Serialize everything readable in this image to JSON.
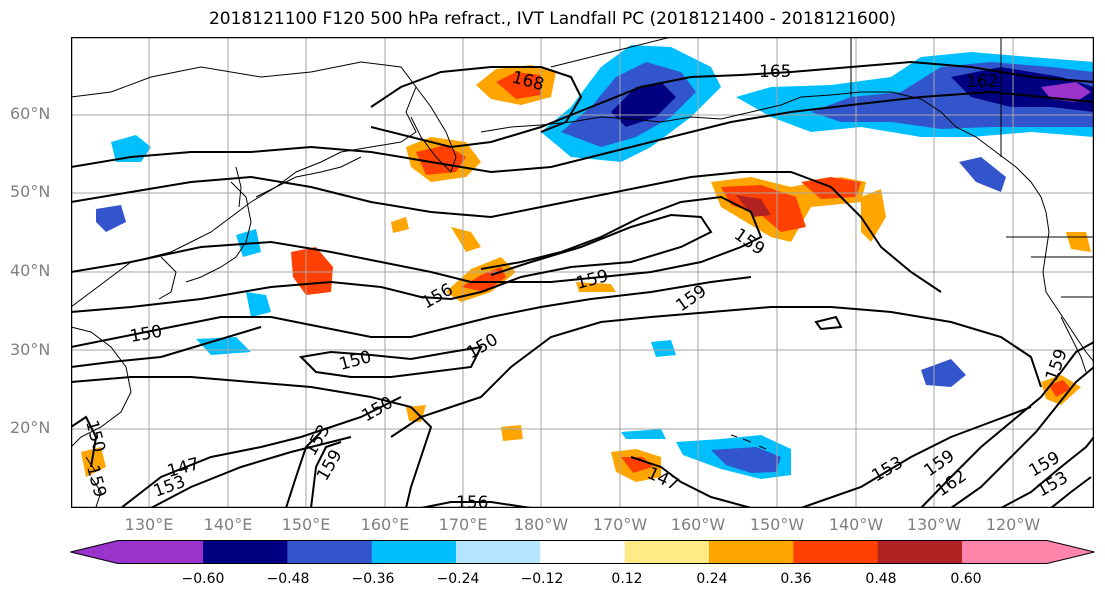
{
  "title": "2018121100 F120 500 hPa refract., IVT Landfall PC (2018121400 - 2018121600)",
  "lat_labels": [
    "60°N",
    "50°N",
    "40°N",
    "30°N",
    "20°N"
  ],
  "lon_labels": [
    "130°E",
    "140°E",
    "150°E",
    "160°E",
    "170°E",
    "180°W",
    "170°W",
    "160°W",
    "150°W",
    "140°W",
    "130°W",
    "120°W"
  ],
  "contour_labels": [
    "168",
    "165",
    "162",
    "159",
    "159",
    "159",
    "156",
    "150",
    "150",
    "150",
    "150",
    "150",
    "147",
    "147",
    "153",
    "153",
    "153",
    "156",
    "159",
    "159",
    "162",
    "159",
    "153",
    "159",
    "159"
  ],
  "colorbar": {
    "ticks": [
      "−0.60",
      "−0.48",
      "−0.36",
      "−0.24",
      "−0.12",
      "0.12",
      "0.24",
      "0.36",
      "0.48",
      "0.60"
    ],
    "colors": [
      "#9933cc",
      "#000080",
      "#3355cc",
      "#00bfff",
      "#b3e5fc",
      "#ffffff",
      "#ffeb85",
      "#ffa500",
      "#ff4000",
      "#b22222",
      "#ff85aa"
    ]
  }
}
